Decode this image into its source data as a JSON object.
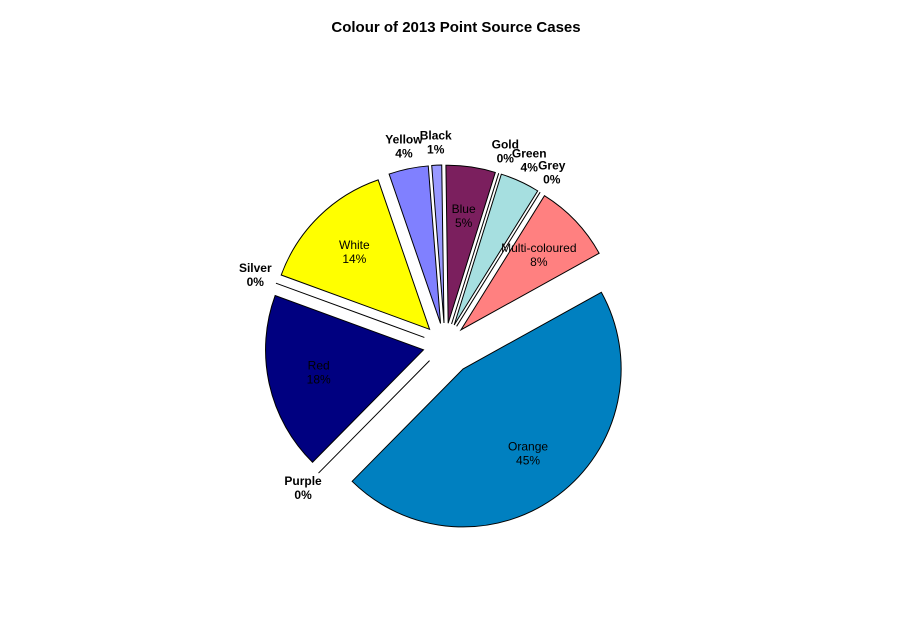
{
  "chart_data": {
    "type": "pie",
    "title": "Colour of 2013 Point Source Cases",
    "categories": [
      "Orange",
      "Purple",
      "Red",
      "Silver",
      "White",
      "Yellow",
      "Black",
      "Blue",
      "Gold",
      "Green",
      "Grey",
      "Multi-coloured"
    ],
    "values": [
      45,
      0,
      18,
      0,
      14,
      4,
      1,
      5,
      0,
      4,
      0,
      8
    ],
    "value_labels": [
      "45%",
      "0%",
      "18%",
      "0%",
      "14%",
      "4%",
      "1%",
      "5%",
      "0%",
      "4%",
      "0%",
      "8%"
    ],
    "colors": [
      "#0080c0",
      "#800080",
      "#000080",
      "#c0c0c0",
      "#ffff00",
      "#8080ff",
      "#9999ff",
      "#7b1f5e",
      "#ffcc00",
      "#a6dfe0",
      "#808080",
      "#ff8080"
    ]
  }
}
